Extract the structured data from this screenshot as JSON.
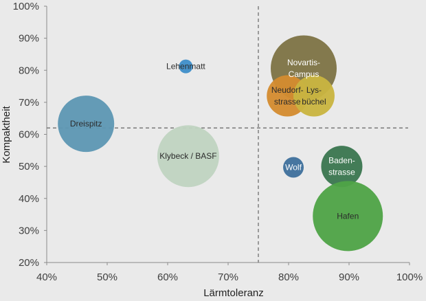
{
  "chart_data": {
    "type": "bubble",
    "xlabel": "Lärmtoleranz",
    "ylabel": "Kompaktheit",
    "xlim": [
      0.4,
      1.0
    ],
    "ylim": [
      0.2,
      1.0
    ],
    "xticks": [
      "40%",
      "50%",
      "60%",
      "70%",
      "80%",
      "90%",
      "100%"
    ],
    "yticks": [
      "20%",
      "30%",
      "40%",
      "50%",
      "60%",
      "70%",
      "80%",
      "90%",
      "100%"
    ],
    "reference_lines": {
      "x": 0.75,
      "y": 0.62
    },
    "points": [
      {
        "lines": [
          "Dreispitz"
        ],
        "x": 0.465,
        "y": 0.633,
        "size": 41,
        "color": "#5e97b3",
        "light": false
      },
      {
        "lines": [
          "Lehenmatt"
        ],
        "x": 0.63,
        "y": 0.812,
        "size": 10,
        "color": "#3f8fc9",
        "light": false
      },
      {
        "lines": [
          "Klybeck / BASF"
        ],
        "x": 0.634,
        "y": 0.532,
        "size": 45,
        "color": "#c0d3c1",
        "light": false
      },
      {
        "lines": [
          "Novartis-",
          "Campus"
        ],
        "x": 0.825,
        "y": 0.806,
        "size": 48,
        "color": "#7e7446",
        "light": true
      },
      {
        "lines": [
          "Neudorf-",
          "strasse"
        ],
        "x": 0.798,
        "y": 0.72,
        "size": 30,
        "color": "#d38b30",
        "light": false
      },
      {
        "lines": [
          "Lys-",
          "büchel"
        ],
        "x": 0.842,
        "y": 0.72,
        "size": 30,
        "color": "#c9b441",
        "light": false
      },
      {
        "lines": [
          "Wolf"
        ],
        "x": 0.808,
        "y": 0.497,
        "size": 15,
        "color": "#3f709c",
        "light": true
      },
      {
        "lines": [
          "Baden-",
          "strasse"
        ],
        "x": 0.888,
        "y": 0.5,
        "size": 30,
        "color": "#3b7750",
        "light": true
      },
      {
        "lines": [
          "Hafen"
        ],
        "x": 0.898,
        "y": 0.345,
        "size": 51,
        "color": "#4fa347",
        "light": false
      }
    ]
  }
}
